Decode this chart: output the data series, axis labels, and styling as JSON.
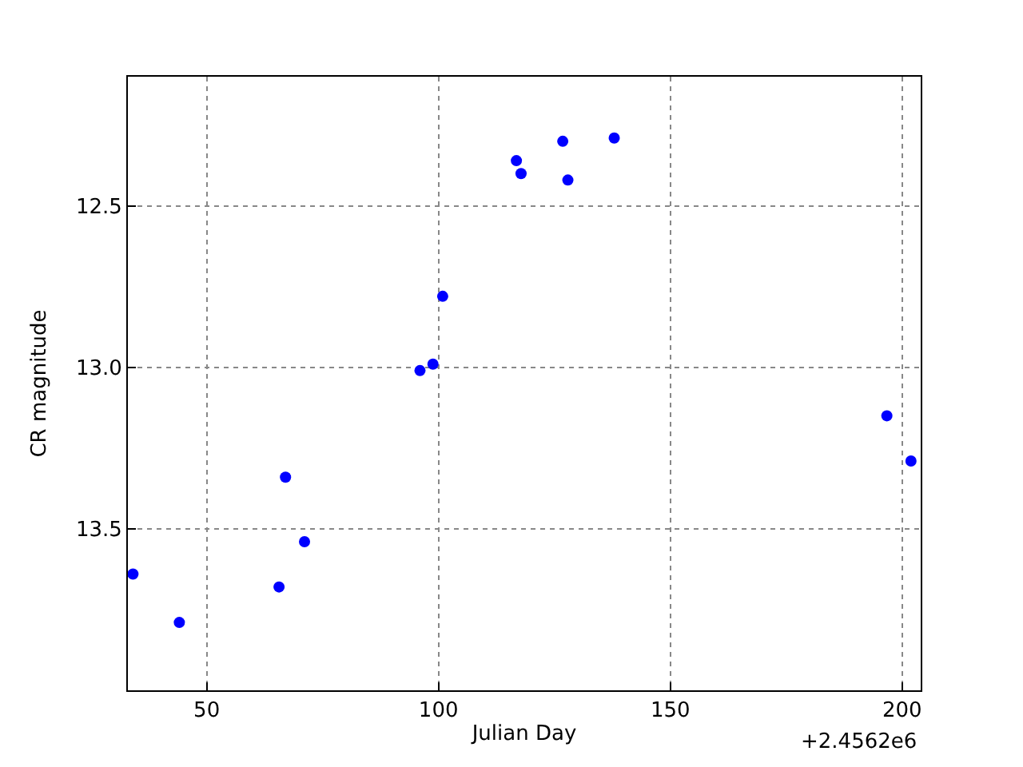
{
  "chart_data": {
    "type": "scatter",
    "xlabel": "Julian Day",
    "ylabel": "CR magnitude",
    "x": [
      34.1,
      44.1,
      65.6,
      67.0,
      71.1,
      96.0,
      98.8,
      100.9,
      116.8,
      117.8,
      126.8,
      127.9,
      137.9,
      196.7,
      201.9
    ],
    "series": [
      {
        "color": "#0000ff",
        "values": [
          13.64,
          13.79,
          13.68,
          13.34,
          13.54,
          13.01,
          12.99,
          12.78,
          12.36,
          12.4,
          12.3,
          12.42,
          12.29,
          13.15,
          13.29
        ]
      }
    ],
    "xlim": [
      33,
      204
    ],
    "ylim": [
      14.0,
      12.1
    ],
    "xticks": [
      50,
      100,
      150,
      200
    ],
    "yticks": [
      {
        "value": 12.5,
        "label": "12.5"
      },
      {
        "value": 13.0,
        "label": "13.0"
      },
      {
        "value": 13.5,
        "label": "13.5"
      }
    ],
    "grid": true,
    "marker": "circle",
    "annotations": [
      "+2.4562e6"
    ]
  }
}
